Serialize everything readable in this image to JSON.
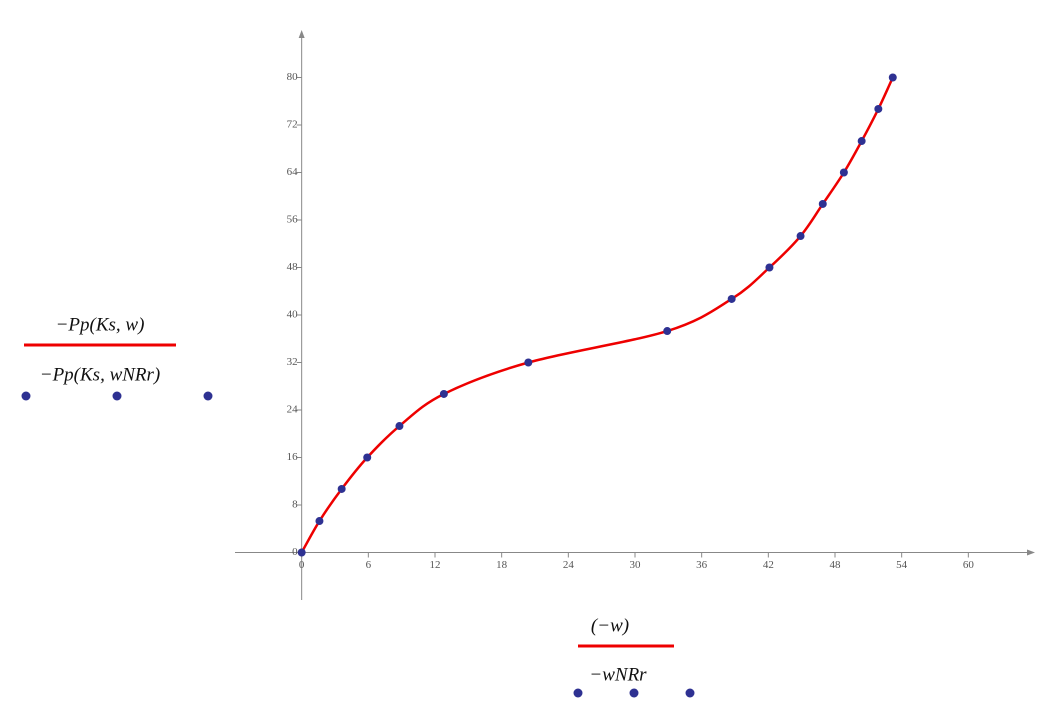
{
  "chart_data": {
    "type": "line",
    "x": [
      0,
      1.6,
      3.6,
      5.9,
      8.8,
      12.8,
      20.4,
      32.9,
      38.7,
      42.1,
      44.9,
      46.9,
      48.8,
      50.4,
      51.9,
      53.2
    ],
    "series": [
      {
        "name": "−Pp(Ks, w)",
        "x_name": "(−w)",
        "style": "line",
        "color": "#ee0000",
        "values": [
          0,
          5.3,
          10.7,
          16,
          21.3,
          26.7,
          32,
          37.3,
          42.7,
          48,
          53.3,
          58.7,
          64,
          69.3,
          74.7,
          80
        ]
      },
      {
        "name": "−Pp(Ks, wNRr)",
        "x_name": "−wNRr",
        "style": "points",
        "color": "#2e3192",
        "values": [
          0,
          5.3,
          10.7,
          16,
          21.3,
          26.7,
          32,
          37.3,
          42.7,
          48,
          53.3,
          58.7,
          64,
          69.3,
          74.7,
          80
        ]
      }
    ],
    "xlim": [
      -6,
      66
    ],
    "ylim": [
      -8,
      88
    ],
    "xticks": [
      0,
      6,
      12,
      18,
      24,
      30,
      36,
      42,
      48,
      54,
      60
    ],
    "yticks": [
      0,
      8,
      16,
      24,
      32,
      40,
      48,
      56,
      64,
      72,
      80
    ]
  }
}
